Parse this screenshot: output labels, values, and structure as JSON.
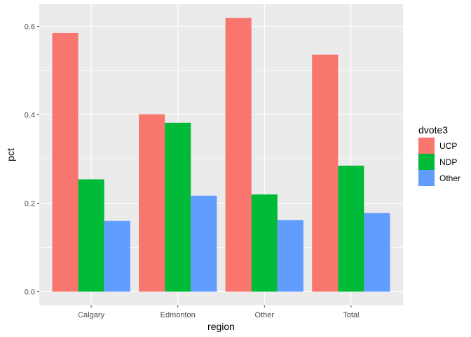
{
  "chart_data": {
    "type": "bar",
    "categories": [
      "Calgary",
      "Edmonton",
      "Other",
      "Total"
    ],
    "series": [
      {
        "name": "UCP",
        "color": "#F8766D",
        "values": [
          0.585,
          0.401,
          0.619,
          0.536
        ]
      },
      {
        "name": "NDP",
        "color": "#00BA38",
        "values": [
          0.254,
          0.382,
          0.22,
          0.285
        ]
      },
      {
        "name": "Other",
        "color": "#619CFF",
        "values": [
          0.16,
          0.217,
          0.162,
          0.178
        ]
      }
    ],
    "ylim": [
      -0.031,
      0.65
    ],
    "yticks": [
      0.0,
      0.2,
      0.4,
      0.6
    ],
    "ytick_labels": [
      "0.0",
      "0.2",
      "0.4",
      "0.6"
    ],
    "xlabel": "region",
    "ylabel": "pct",
    "legend_title": "dvote3",
    "legend_position": "right",
    "grid": true,
    "panel_background": "#EBEBEB"
  }
}
